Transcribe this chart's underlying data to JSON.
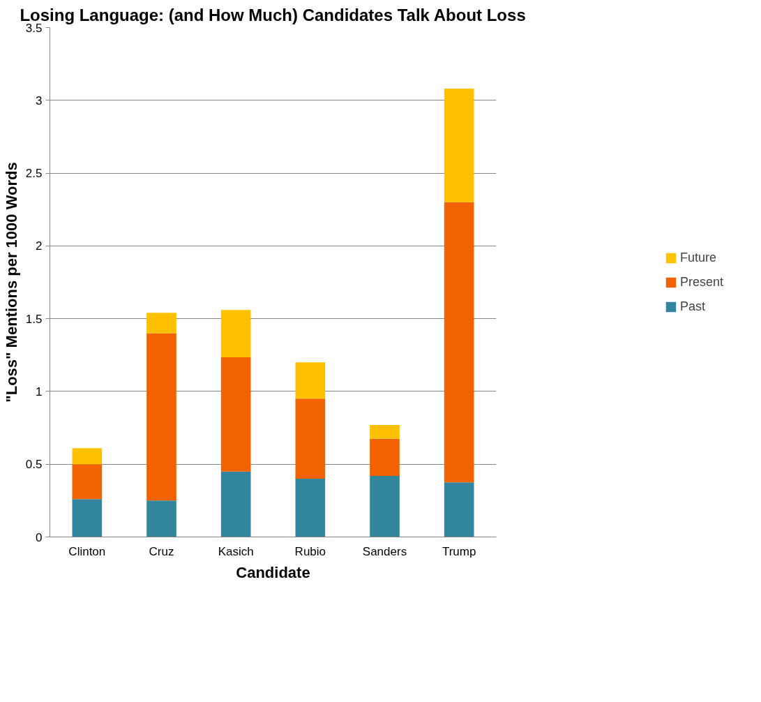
{
  "chart_data": {
    "type": "bar",
    "title": "Losing Language: (and How Much) Candidates Talk About Loss",
    "xlabel": "Candidate",
    "ylabel": "\"Loss\" Mentions per 1000 Words",
    "categories": [
      "Clinton",
      "Cruz",
      "Kasich",
      "Rubio",
      "Sanders",
      "Trump"
    ],
    "stacked": true,
    "series": [
      {
        "name": "Past",
        "color": "#31859c",
        "values": [
          0.26,
          0.25,
          0.45,
          0.4,
          0.42,
          0.375
        ]
      },
      {
        "name": "Present",
        "color": "#f26300",
        "values": [
          0.24,
          1.15,
          0.785,
          0.55,
          0.255,
          1.925
        ]
      },
      {
        "name": "Future",
        "color": "#ffc000",
        "values": [
          0.11,
          0.14,
          0.325,
          0.25,
          0.095,
          0.78
        ]
      }
    ],
    "ylim": [
      0,
      3.5
    ],
    "yticks": [
      0,
      0.5,
      1,
      1.5,
      2,
      2.5,
      3,
      3.5
    ],
    "grid": "y",
    "legend": "right"
  }
}
